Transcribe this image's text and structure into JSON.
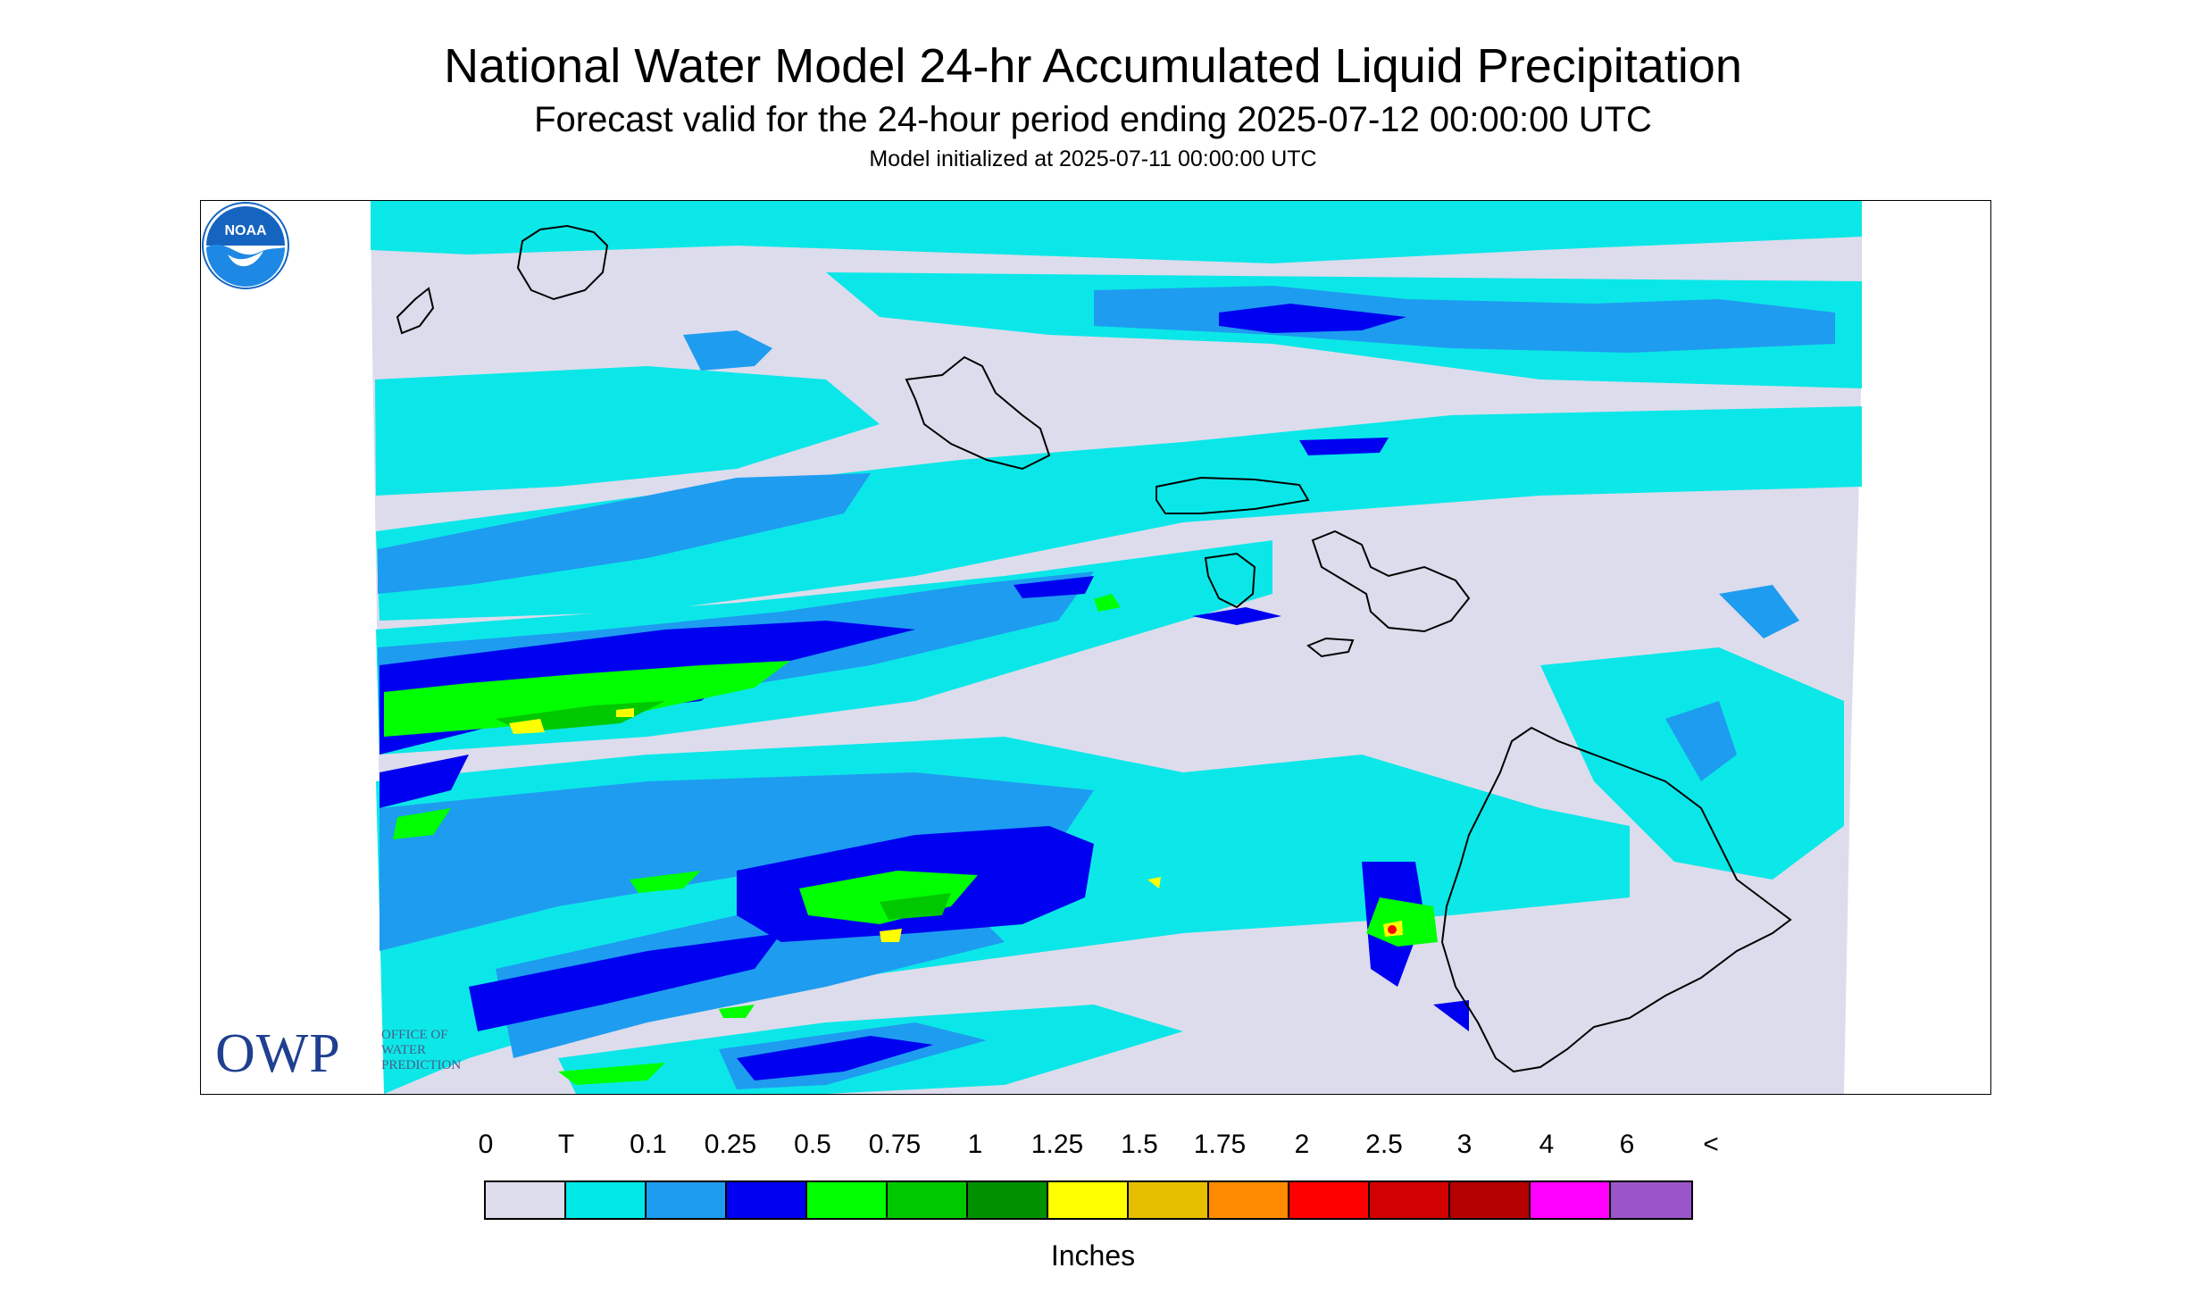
{
  "title": "National Water Model 24-hr Accumulated Liquid Precipitation",
  "subtitle": "Forecast valid for the 24-hour period ending 2025-07-12 00:00:00 UTC",
  "init": "Model initialized at 2025-07-11 00:00:00 UTC",
  "legend": {
    "labels": [
      "0",
      "T",
      "0.1",
      "0.25",
      "0.5",
      "0.75",
      "1",
      "1.25",
      "1.5",
      "1.75",
      "2",
      "2.5",
      "3",
      "4",
      "6",
      "<"
    ],
    "colors": [
      "#dcdcec",
      "#00e8e8",
      "#1e9cf0",
      "#0000f0",
      "#00ff00",
      "#00c800",
      "#009000",
      "#ffff00",
      "#e6be00",
      "#ff8c00",
      "#ff0000",
      "#d20000",
      "#b40000",
      "#ff00ff",
      "#9a55c8"
    ],
    "units": "Inches"
  },
  "logos": {
    "owp_text": "OWP",
    "owp_small": [
      "OFFICE OF",
      "WATER",
      "PREDICTION"
    ],
    "noaa_text": "NOAA"
  },
  "colors": {
    "background": "#dcdcec",
    "trace": "#00e8e8",
    "light_blue": "#1e9cf0",
    "blue": "#0000f0",
    "green": "#00ff00",
    "mid_green": "#00c800",
    "yellow": "#ffff00",
    "red": "#ff0000",
    "owp_blue": "#1f3f8f",
    "noaa_blue": "#1565c0"
  }
}
